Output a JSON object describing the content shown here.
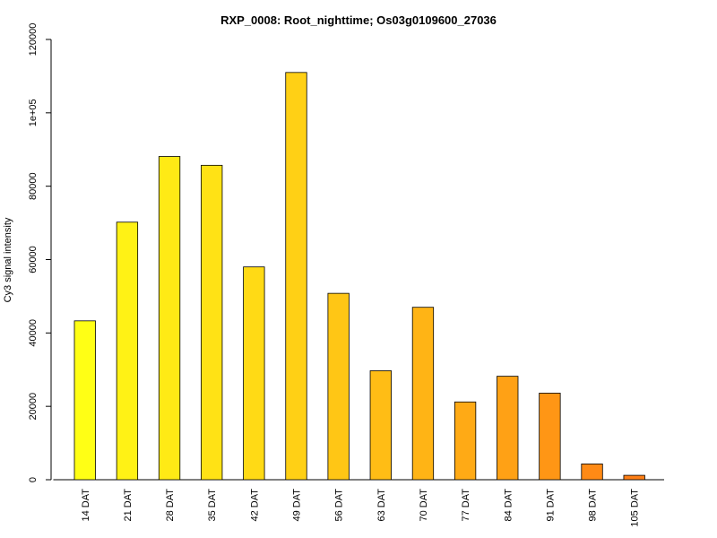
{
  "chart_data": {
    "type": "bar",
    "title": "RXP_0008: Root_nighttime; Os03g0109600_27036",
    "xlabel": "",
    "ylabel": "Cy3 signal intensity",
    "ylim": [
      0,
      120000
    ],
    "yticks": [
      {
        "value": 0,
        "label": "0"
      },
      {
        "value": 20000,
        "label": "20000"
      },
      {
        "value": 40000,
        "label": "40000"
      },
      {
        "value": 60000,
        "label": "60000"
      },
      {
        "value": 80000,
        "label": "80000"
      },
      {
        "value": 100000,
        "label": "1e+05"
      },
      {
        "value": 120000,
        "label": "120000"
      }
    ],
    "categories": [
      "14 DAT",
      "21 DAT",
      "28 DAT",
      "35 DAT",
      "42 DAT",
      "49 DAT",
      "56 DAT",
      "63 DAT",
      "70 DAT",
      "77 DAT",
      "84 DAT",
      "91 DAT",
      "98 DAT",
      "105 DAT"
    ],
    "values": [
      43300,
      70200,
      88100,
      85700,
      58000,
      111000,
      50800,
      29700,
      47000,
      21200,
      28200,
      23600,
      4300,
      1200
    ],
    "colors": [
      "#ffff15",
      "#fff215",
      "#ffea15",
      "#ffe215",
      "#ffda15",
      "#ffd015",
      "#ffc615",
      "#ffbd15",
      "#ffb415",
      "#ffaa15",
      "#ffa115",
      "#ff9615",
      "#ff8a15",
      "#ff7f15"
    ],
    "grid": false,
    "legend": "none"
  }
}
